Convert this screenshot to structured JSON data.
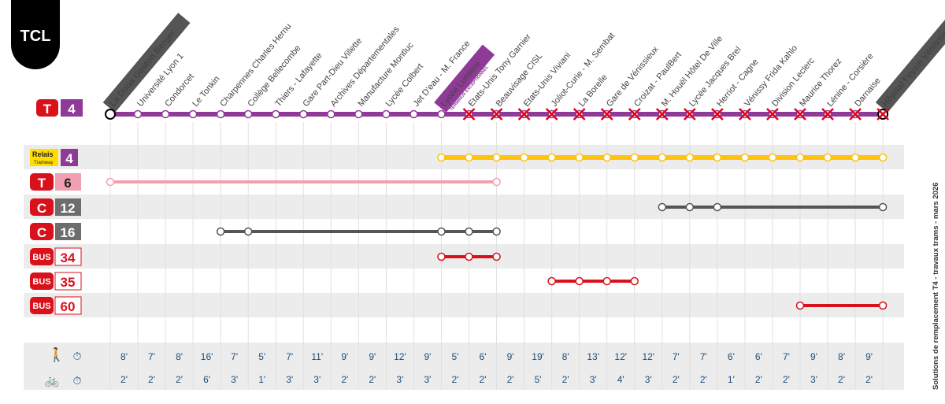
{
  "logo": "TCL",
  "side_title": "Solutions de remplacement T4 - travaux trams - mars 2026",
  "main_line": {
    "mode": "T",
    "number": "4",
    "color": "#8e3a96"
  },
  "terminus_note": "TERMINUS EXCEPTIONNEL",
  "stations": [
    "La Doua Gaston Berger",
    "Université Lyon 1",
    "Condorcet",
    "Le Tonkin",
    "Charpennes Charles Hernu",
    "Collège Bellecombe",
    "Thiers - Lafayette",
    "Gare Part-Dieu Villette",
    "Archives Départementales",
    "Manufacture Montluc",
    "Lycée Colbert",
    "Jet D'eau - M. France",
    "Lycée Lumière",
    "Etats-Unis Tony Garnier",
    "Beauvisage CISL",
    "Etats-Unis Viviani",
    "Joliot-Curie - M. Sembat",
    "La Borelle",
    "Gare de Vénissieux",
    "Croizat - PaulBert",
    "M. Houël Hôtel De Ville",
    "Lycée Jacques Brel",
    "Herriot - Cagne",
    "Vénissy Frida Kahlo",
    "Division Leclerc",
    "Maurice Thorez",
    "Lénine - Corsière",
    "Darnaise",
    "Hôpital Feyzin Vénissieux"
  ],
  "closed_from_index": 13,
  "lines": [
    {
      "mode": "Relais",
      "mode_sub": "Tramway",
      "number": "4",
      "color": "#ffc20e",
      "stops": [
        12,
        13,
        14,
        15,
        16,
        17,
        18,
        19,
        20,
        21,
        22,
        23,
        24,
        25,
        26,
        27,
        28
      ]
    },
    {
      "mode": "T",
      "number": "6",
      "color": "#f0a0b0",
      "stops": [
        0,
        14
      ]
    },
    {
      "mode": "C",
      "number": "12",
      "color": "#555555",
      "stops": [
        20,
        21,
        22,
        28
      ]
    },
    {
      "mode": "C",
      "number": "16",
      "color": "#555555",
      "stops": [
        4,
        5,
        12,
        13,
        14
      ]
    },
    {
      "mode": "BUS",
      "number": "34",
      "color": "#d8111b",
      "stops": [
        12,
        13,
        14
      ]
    },
    {
      "mode": "BUS",
      "number": "35",
      "color": "#d8111b",
      "stops": [
        16,
        17,
        18,
        19
      ]
    },
    {
      "mode": "BUS",
      "number": "60",
      "color": "#d8111b",
      "stops": [
        25,
        28
      ]
    }
  ],
  "walk_times": [
    "8'",
    "7'",
    "8'",
    "16'",
    "7'",
    "5'",
    "7'",
    "11'",
    "9'",
    "9'",
    "12'",
    "9'",
    "5'",
    "6'",
    "9'",
    "19'",
    "8'",
    "13'",
    "12'",
    "12'",
    "7'",
    "7'",
    "6'",
    "6'",
    "7'",
    "9'",
    "8'",
    "9'"
  ],
  "bike_times": [
    "2'",
    "2'",
    "2'",
    "6'",
    "3'",
    "1'",
    "3'",
    "3'",
    "2'",
    "2'",
    "3'",
    "3'",
    "2'",
    "2'",
    "2'",
    "5'",
    "2'",
    "3'",
    "4'",
    "3'",
    "2'",
    "2'",
    "1'",
    "2'",
    "2'",
    "3'",
    "2'",
    "2'"
  ]
}
